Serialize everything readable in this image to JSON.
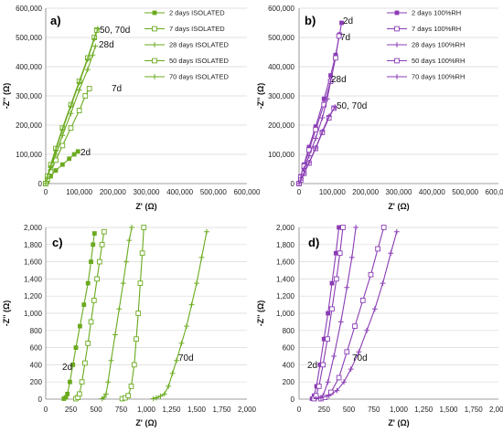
{
  "chart_data": [
    {
      "panel_label": "a)",
      "type": "line",
      "xlabel": "Z' (Ω)",
      "ylabel": "-Z'' (Ω)",
      "xlim": [
        0,
        600000
      ],
      "ylim": [
        0,
        600000
      ],
      "xticks": [
        "0",
        "100,000",
        "200,000",
        "300,000",
        "400,000",
        "500,000",
        "600,000"
      ],
      "yticks": [
        "0",
        "100,000",
        "200,000",
        "300,000",
        "400,000",
        "500,000",
        "600,000"
      ],
      "color": "#6aaa1e",
      "legend_position": "top-right",
      "series": [
        {
          "name": "2 days ISOLATED",
          "marker": "square",
          "x": [
            0,
            5000,
            15000,
            30000,
            50000,
            70000,
            85000,
            96000
          ],
          "y": [
            0,
            8000,
            25000,
            45000,
            65000,
            85000,
            100000,
            110000
          ]
        },
        {
          "name": "7 days ISOLATED",
          "marker": "open-square",
          "x": [
            0,
            5000,
            15000,
            30000,
            50000,
            75000,
            100000,
            118000,
            130000
          ],
          "y": [
            0,
            15000,
            40000,
            80000,
            130000,
            190000,
            250000,
            300000,
            325000
          ]
        },
        {
          "name": "28 days ISOLATED",
          "marker": "plus",
          "x": [
            0,
            5000,
            15000,
            30000,
            50000,
            75000,
            100000,
            125000,
            140000,
            148000
          ],
          "y": [
            0,
            20000,
            55000,
            100000,
            165000,
            240000,
            320000,
            390000,
            440000,
            470000
          ]
        },
        {
          "name": "50 days ISOLATED",
          "marker": "open-square",
          "x": [
            0,
            5000,
            15000,
            30000,
            50000,
            75000,
            100000,
            125000,
            145000,
            152000
          ],
          "y": [
            0,
            25000,
            65000,
            120000,
            190000,
            270000,
            350000,
            430000,
            500000,
            525000
          ]
        },
        {
          "name": "70 days ISOLATED",
          "marker": "plus",
          "x": [
            0,
            5000,
            15000,
            30000,
            50000,
            75000,
            100000,
            125000,
            145000,
            155000
          ],
          "y": [
            0,
            22000,
            60000,
            115000,
            185000,
            265000,
            345000,
            425000,
            495000,
            530000
          ]
        }
      ],
      "annotations": [
        "2d",
        "7d",
        "28d",
        "50, 70d"
      ]
    },
    {
      "panel_label": "b)",
      "type": "line",
      "xlabel": "Z' (Ω)",
      "ylabel": "-Z'' (Ω)",
      "xlim": [
        0,
        600000
      ],
      "ylim": [
        0,
        600000
      ],
      "xticks": [
        "0",
        "100,000",
        "200,000",
        "300,000",
        "400,000",
        "500,000",
        "600,000"
      ],
      "yticks": [
        "0",
        "100,000",
        "200,000",
        "300,000",
        "400,000",
        "500,000",
        "600,000"
      ],
      "color": "#8a3cb4",
      "legend_position": "top-right",
      "series": [
        {
          "name": "2 days 100%RH",
          "marker": "square",
          "x": [
            0,
            5000,
            15000,
            30000,
            50000,
            75000,
            95000,
            110000,
            122000,
            128000
          ],
          "y": [
            0,
            25000,
            65000,
            125000,
            195000,
            290000,
            370000,
            440000,
            510000,
            550000
          ]
        },
        {
          "name": "7 days 100%RH",
          "marker": "open-square",
          "x": [
            0,
            5000,
            15000,
            30000,
            50000,
            75000,
            95000,
            110000,
            120000
          ],
          "y": [
            0,
            22000,
            60000,
            115000,
            185000,
            270000,
            350000,
            430000,
            505000
          ]
        },
        {
          "name": "28 days 100%RH",
          "marker": "plus",
          "x": [
            0,
            5000,
            15000,
            30000,
            50000,
            70000,
            85000,
            95000
          ],
          "y": [
            0,
            18000,
            50000,
            95000,
            155000,
            225000,
            290000,
            350000
          ]
        },
        {
          "name": "50 days 100%RH",
          "marker": "open-square",
          "x": [
            0,
            5000,
            15000,
            30000,
            50000,
            70000,
            90000,
            105000
          ],
          "y": [
            0,
            12000,
            35000,
            70000,
            120000,
            175000,
            225000,
            258000
          ]
        },
        {
          "name": "70 days 100%RH",
          "marker": "plus",
          "x": [
            0,
            5000,
            15000,
            30000,
            50000,
            70000,
            90000,
            108000
          ],
          "y": [
            0,
            12000,
            34000,
            72000,
            122000,
            178000,
            230000,
            262000
          ]
        }
      ],
      "annotations": [
        "2d",
        "7d",
        "28d",
        "50, 70d"
      ]
    },
    {
      "panel_label": "c)",
      "type": "line",
      "xlabel": "Z' (Ω)",
      "ylabel": "-Z'' (Ω)",
      "xlim": [
        0,
        2000
      ],
      "ylim": [
        0,
        2000
      ],
      "xticks": [
        "0",
        "250",
        "500",
        "750",
        "1,000",
        "1,250",
        "1,500",
        "1,750",
        "2,000"
      ],
      "yticks": [
        "0",
        "200",
        "400",
        "600",
        "800",
        "1,000",
        "1,200",
        "1,400",
        "1,600",
        "1,800",
        "2,000"
      ],
      "color": "#6aaa1e",
      "series": [
        {
          "name": "2 days ISOLATED",
          "marker": "square",
          "x": [
            180,
            200,
            215,
            240,
            270,
            300,
            340,
            380,
            420,
            450,
            470,
            485
          ],
          "y": [
            5,
            20,
            60,
            200,
            400,
            600,
            850,
            1100,
            1350,
            1600,
            1800,
            1930
          ]
        },
        {
          "name": "7 days ISOLATED",
          "marker": "open-square",
          "x": [
            300,
            320,
            335,
            360,
            390,
            420,
            450,
            480,
            510,
            535,
            560,
            580
          ],
          "y": [
            5,
            20,
            60,
            200,
            420,
            650,
            900,
            1150,
            1400,
            1600,
            1800,
            1950
          ]
        },
        {
          "name": "28 days ISOLATED",
          "marker": "plus",
          "x": [
            560,
            580,
            600,
            620,
            650,
            690,
            730,
            770,
            800,
            830,
            855
          ],
          "y": [
            5,
            20,
            60,
            200,
            450,
            750,
            1050,
            1350,
            1600,
            1850,
            2000
          ]
        },
        {
          "name": "50 days ISOLATED",
          "marker": "open-square",
          "x": [
            760,
            790,
            820,
            850,
            880,
            900,
            920,
            940,
            960,
            975
          ],
          "y": [
            5,
            15,
            40,
            150,
            400,
            700,
            1000,
            1350,
            1700,
            2000
          ]
        },
        {
          "name": "70 days ISOLATED",
          "marker": "plus",
          "x": [
            1070,
            1100,
            1140,
            1180,
            1220,
            1260,
            1300,
            1350,
            1400,
            1450,
            1500,
            1550,
            1600
          ],
          "y": [
            5,
            15,
            35,
            60,
            150,
            300,
            450,
            650,
            850,
            1100,
            1350,
            1650,
            1950
          ]
        }
      ],
      "annotations": [
        "2d",
        "70d"
      ]
    },
    {
      "panel_label": "d)",
      "type": "line",
      "xlabel": "Z' (Ω)",
      "ylabel": "-Z'' (Ω)",
      "xlim": [
        0,
        2000
      ],
      "ylim": [
        0,
        2000
      ],
      "xticks": [
        "0",
        "250",
        "500",
        "750",
        "1,000",
        "1,250",
        "1,500",
        "1,750",
        "2,000"
      ],
      "yticks": [
        "0",
        "200",
        "400",
        "600",
        "800",
        "1,000",
        "1,200",
        "1,400",
        "1,600",
        "1,800",
        "2,000"
      ],
      "color": "#8a3cb4",
      "series": [
        {
          "name": "2 days 100%RH",
          "marker": "square",
          "x": [
            130,
            150,
            175,
            210,
            250,
            290,
            330,
            370,
            400
          ],
          "y": [
            5,
            40,
            150,
            400,
            700,
            1000,
            1350,
            1700,
            2000
          ]
        },
        {
          "name": "7 days 100%RH",
          "marker": "open-square",
          "x": [
            150,
            170,
            200,
            240,
            285,
            330,
            375,
            410,
            440
          ],
          "y": [
            5,
            40,
            150,
            400,
            700,
            1050,
            1400,
            1700,
            2000
          ]
        },
        {
          "name": "28 days 100%RH",
          "marker": "plus",
          "x": [
            210,
            240,
            290,
            350,
            420,
            480,
            530,
            570
          ],
          "y": [
            5,
            40,
            200,
            500,
            900,
            1300,
            1650,
            2000
          ]
        },
        {
          "name": "50 days 100%RH",
          "marker": "open-square",
          "x": [
            220,
            260,
            320,
            400,
            480,
            560,
            640,
            720,
            790,
            850
          ],
          "y": [
            5,
            20,
            80,
            250,
            550,
            850,
            1150,
            1450,
            1750,
            2000
          ]
        },
        {
          "name": "70 days 100%RH",
          "marker": "plus",
          "x": [
            170,
            220,
            300,
            380,
            450,
            520,
            600,
            680,
            760,
            840,
            920,
            980
          ],
          "y": [
            5,
            15,
            40,
            100,
            200,
            350,
            550,
            800,
            1050,
            1350,
            1700,
            1950
          ]
        }
      ],
      "annotations": [
        "2d",
        "70d"
      ]
    }
  ]
}
